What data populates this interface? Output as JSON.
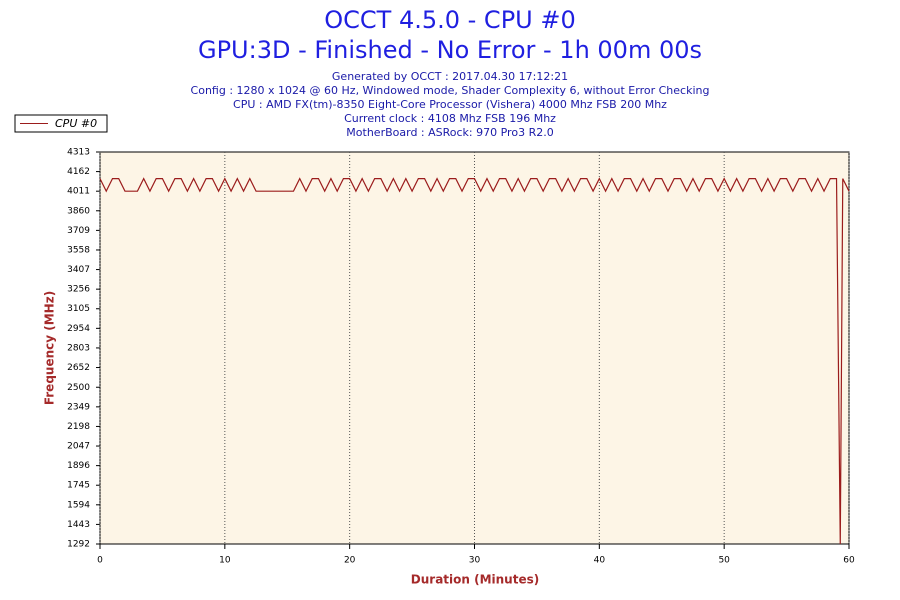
{
  "chart_data": {
    "type": "line",
    "title": "OCCT 4.5.0 - CPU #0",
    "subtitle": "GPU:3D - Finished - No Error - 1h 00m 00s",
    "info": [
      "Generated by OCCT : 2017.04.30 17:12:21",
      "Config : 1280 x 1024 @ 60 Hz, Windowed mode, Shader Complexity 6, without Error Checking",
      "CPU : AMD FX(tm)-8350 Eight-Core Processor (Vishera) 4000 Mhz FSB 200 Mhz",
      "Current clock : 4108 Mhz FSB 196 Mhz",
      "MotherBoard : ASRock: 970 Pro3 R2.0"
    ],
    "xlabel": "Duration (Minutes)",
    "ylabel": "Frequency (MHz)",
    "xlim": [
      0,
      60
    ],
    "ylim": [
      1292,
      4313
    ],
    "xticks": [
      0,
      10,
      20,
      30,
      40,
      50,
      60
    ],
    "yticks": [
      1292,
      1443,
      1594,
      1745,
      1896,
      2047,
      2198,
      2349,
      2500,
      2652,
      2803,
      2954,
      3105,
      3256,
      3407,
      3558,
      3709,
      3860,
      4011,
      4162,
      4313
    ],
    "grid": true,
    "legend": "top-left",
    "x": [
      0,
      0.5,
      1,
      1.5,
      2,
      2.5,
      3,
      3.5,
      4,
      4.5,
      5,
      5.5,
      6,
      6.5,
      7,
      7.5,
      8,
      8.5,
      9,
      9.5,
      10,
      10.5,
      11,
      11.5,
      12,
      12.5,
      13,
      13.5,
      14,
      14.5,
      15,
      15.5,
      16,
      16.5,
      17,
      17.5,
      18,
      18.5,
      19,
      19.5,
      20,
      20.5,
      21,
      21.5,
      22,
      22.5,
      23,
      23.5,
      24,
      24.5,
      25,
      25.5,
      26,
      26.5,
      27,
      27.5,
      28,
      28.5,
      29,
      29.5,
      30,
      30.5,
      31,
      31.5,
      32,
      32.5,
      33,
      33.5,
      34,
      34.5,
      35,
      35.5,
      36,
      36.5,
      37,
      37.5,
      38,
      38.5,
      39,
      39.5,
      40,
      40.5,
      41,
      41.5,
      42,
      42.5,
      43,
      43.5,
      44,
      44.5,
      45,
      45.5,
      46,
      46.5,
      47,
      47.5,
      48,
      48.5,
      49,
      49.5,
      50,
      50.5,
      51,
      51.5,
      52,
      52.5,
      53,
      53.5,
      54,
      54.5,
      55,
      55.5,
      56,
      56.5,
      57,
      57.5,
      58,
      58.5,
      59,
      59.3,
      59.5,
      60
    ],
    "series": [
      {
        "name": "CPU #0",
        "color": "#9b1c1c",
        "values": [
          4108,
          4011,
          4108,
          4108,
          4011,
          4011,
          4011,
          4108,
          4011,
          4108,
          4108,
          4011,
          4108,
          4108,
          4011,
          4108,
          4011,
          4108,
          4108,
          4011,
          4108,
          4011,
          4108,
          4011,
          4108,
          4011,
          4011,
          4011,
          4011,
          4011,
          4011,
          4011,
          4108,
          4011,
          4108,
          4108,
          4011,
          4108,
          4011,
          4108,
          4108,
          4011,
          4108,
          4011,
          4108,
          4108,
          4011,
          4108,
          4011,
          4108,
          4011,
          4108,
          4108,
          4011,
          4108,
          4011,
          4108,
          4108,
          4011,
          4108,
          4108,
          4011,
          4108,
          4011,
          4108,
          4108,
          4011,
          4108,
          4011,
          4108,
          4108,
          4011,
          4108,
          4108,
          4011,
          4108,
          4011,
          4108,
          4108,
          4011,
          4108,
          4011,
          4108,
          4011,
          4108,
          4108,
          4011,
          4108,
          4011,
          4108,
          4108,
          4011,
          4108,
          4108,
          4011,
          4108,
          4011,
          4108,
          4108,
          4011,
          4108,
          4011,
          4108,
          4011,
          4108,
          4108,
          4011,
          4108,
          4011,
          4108,
          4108,
          4011,
          4108,
          4108,
          4011,
          4108,
          4011,
          4108,
          4108,
          1292,
          4108,
          4011
        ]
      }
    ]
  }
}
